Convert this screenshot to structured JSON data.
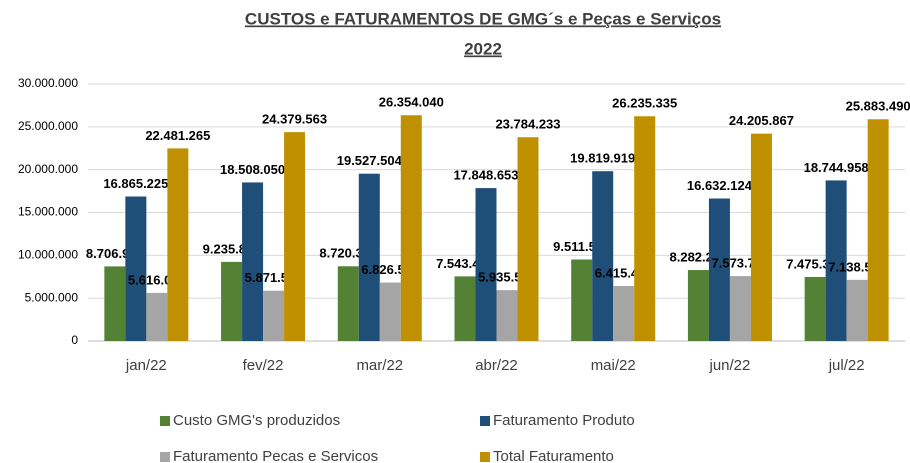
{
  "chart_data": {
    "type": "bar",
    "title": [
      "CUSTOS e FATURAMENTOS DE GMG´s e Peças e Serviços",
      "2022"
    ],
    "categories": [
      "jan/22",
      "fev/22",
      "mar/22",
      "abr/22",
      "mai/22",
      "jun/22",
      "jul/22"
    ],
    "series": [
      {
        "name": "Custo GMG's produzidos",
        "color": "#548235",
        "values": [
          8706949,
          9235839,
          8720331,
          7543475,
          9511500,
          8282296,
          7475357
        ],
        "value_labels": [
          "8.706.949",
          "9.235.839",
          "8.720.331",
          "7.543.475",
          "9.511.500",
          "8.282.296",
          "7.475.357"
        ]
      },
      {
        "name": "Faturamento Produto",
        "color": "#1f4e79",
        "values": [
          16865225,
          18508050,
          19527504,
          17848653,
          19819919,
          16632124,
          18744958
        ],
        "value_labels": [
          "16.865.225",
          "18.508.050",
          "19.527.504",
          "17.848.653",
          "19.819.919",
          "16.632.124",
          "18.744.958"
        ]
      },
      {
        "name": "Faturamento Pecas e Servicos",
        "color": "#a5a5a5",
        "values": [
          5616041,
          5871513,
          6826536,
          5935580,
          6415415,
          7573743,
          7138532
        ],
        "value_labels": [
          "5.616.041",
          "5.871.513",
          "6.826.536",
          "5.935.580",
          "6.415.415",
          "7.573.743",
          "7.138.532"
        ]
      },
      {
        "name": "Total Faturamento",
        "color": "#bf9000",
        "values": [
          22481265,
          24379563,
          26354040,
          23784233,
          26235335,
          24205867,
          25883490
        ],
        "value_labels": [
          "22.481.265",
          "24.379.563",
          "26.354.040",
          "23.784.233",
          "26.235.335",
          "24.205.867",
          "25.883.490"
        ]
      }
    ],
    "ylim": [
      0,
      30000000
    ],
    "yticks": [
      0,
      {
        "value": 5000000,
        "label": "5.000.000"
      },
      {
        "value": 10000000,
        "label": "10.000.000"
      },
      {
        "value": 15000000,
        "label": "15.000.000"
      },
      {
        "value": 20000000,
        "label": "20.000.000"
      },
      {
        "value": 25000000,
        "label": "25.000.000"
      },
      {
        "value": 30000000,
        "label": "30.000.000"
      }
    ],
    "grid": true
  }
}
